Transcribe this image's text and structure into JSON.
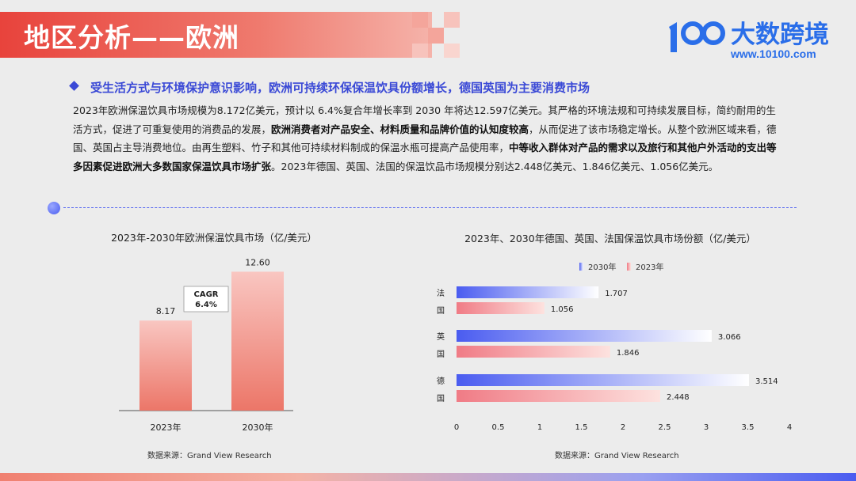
{
  "page": {
    "title": "地区分析——欧洲",
    "logo_text": "大数跨境",
    "logo_url": "www.10100.com",
    "headline": "受生活方式与环境保护意识影响，欧洲可持续环保保温饮具份额增长，德国英国为主要消费市场",
    "para_1": "2023年欧洲保温饮具市场规模为8.172亿美元，预计以 6.4%复合年增长率到 2030 年将达12.597亿美元。其严格的环境法规和可持续发展目标，简约耐用的生活方式，促进了可重复使用的消费品的发展，",
    "para_bold_1": "欧洲消费者对产品安全、材料质量和品牌价值的认知度较高",
    "para_2": "，从而促进了该市场稳定增长。从整个欧洲区域来看，德国、英国占主导消费地位。由再生塑料、竹子和其他可持续材料制成的保温水瓶可提高产品使用率，",
    "para_bold_2": "中等收入群体对产品的需求以及旅行和其他户外活动的支出等多因素促进欧洲大多数国家保温饮具市场扩张",
    "para_3": "。2023年德国、英国、法国的保温饮品市场规模分别达2.448亿美元、1.846亿美元、1.056亿美元。"
  },
  "colors": {
    "accent_red": "#e8433c",
    "accent_blue": "#3a49d6",
    "bar_2030": "#4a5cf0",
    "bar_2023": "#f07b85"
  },
  "chart_data": [
    {
      "type": "bar",
      "title": "2023年-2030年欧洲保温饮具市场（亿/美元）",
      "categories": [
        "2023年",
        "2030年"
      ],
      "values": [
        8.17,
        12.6
      ],
      "value_labels": [
        "8.17",
        "12.60"
      ],
      "annotation": {
        "line1": "CAGR",
        "line2": "6.4%"
      },
      "source": "数据来源：Grand View Research"
    },
    {
      "type": "bar",
      "orientation": "horizontal",
      "title": "2023年、2030年德国、英国、法国保温饮具市场份额（亿/美元）",
      "categories": [
        "法国",
        "英国",
        "德国"
      ],
      "series": [
        {
          "name": "2030年",
          "values": [
            1.707,
            3.066,
            3.514
          ]
        },
        {
          "name": "2023年",
          "values": [
            1.056,
            1.846,
            2.448
          ]
        }
      ],
      "xlim": [
        0,
        4
      ],
      "xticks": [
        "0",
        "0.5",
        "1",
        "1.5",
        "2",
        "2.5",
        "3",
        "3.5",
        "4"
      ],
      "source": "数据来源：Grand View Research"
    }
  ]
}
